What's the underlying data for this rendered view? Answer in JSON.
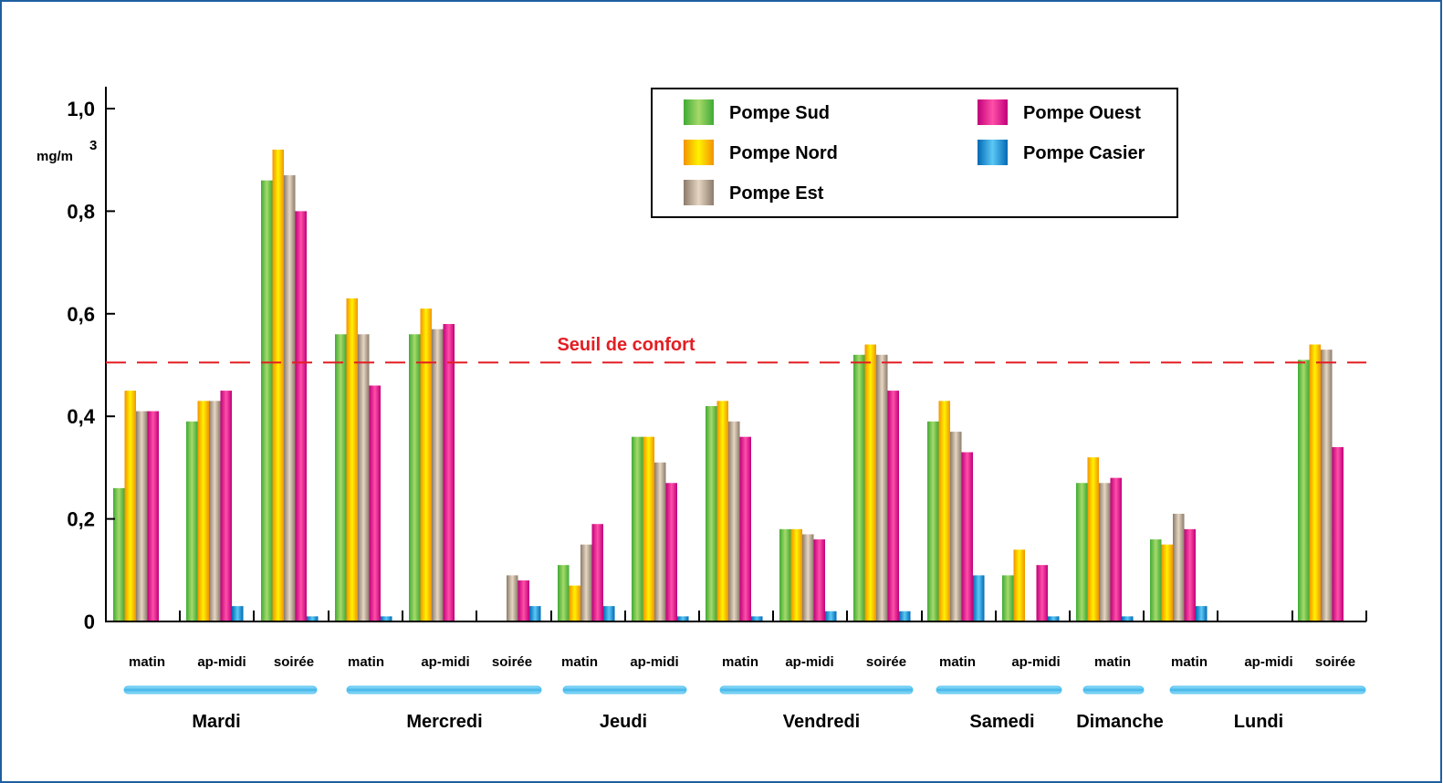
{
  "chart_data": {
    "type": "bar",
    "ylim": [
      0,
      1.0
    ],
    "yticks": [
      {
        "value": 0,
        "label": "0"
      },
      {
        "value": 0.2,
        "label": "0,2"
      },
      {
        "value": 0.4,
        "label": "0,4"
      },
      {
        "value": 0.6,
        "label": "0,6"
      },
      {
        "value": 0.8,
        "label": "0,8"
      },
      {
        "value": 1.0,
        "label": "1,0"
      }
    ],
    "y_unit": "mg/m",
    "y_unit_sup": "3",
    "grid": false,
    "legend_position": "top-center",
    "threshold": {
      "value": 0.505,
      "label": "Seuil de confort",
      "color": "#e31e24"
    },
    "series": [
      {
        "name": "Pompe Sud",
        "color": "#3faa35",
        "light": "#a6d96a"
      },
      {
        "name": "Pompe Nord",
        "color": "#f39200",
        "light": "#fff200"
      },
      {
        "name": "Pompe Est",
        "color": "#8c7b6b",
        "light": "#e5d6c2"
      },
      {
        "name": "Pompe Ouest",
        "color": "#c0007a",
        "light": "#ff4fa8"
      },
      {
        "name": "Pompe Casier",
        "color": "#0069b4",
        "light": "#5cc8f5"
      }
    ],
    "categories": [
      {
        "day": 0,
        "label": "matin",
        "values": [
          0.26,
          0.45,
          0.41,
          0.41,
          0
        ]
      },
      {
        "day": 0,
        "label": "ap-midi",
        "values": [
          0.39,
          0.43,
          0.43,
          0.45,
          0.03
        ]
      },
      {
        "day": 0,
        "label": "soirée",
        "values": [
          0.86,
          0.92,
          0.87,
          0.8,
          0.01
        ]
      },
      {
        "day": 1,
        "label": "matin",
        "values": [
          0.56,
          0.63,
          0.56,
          0.46,
          0.01
        ]
      },
      {
        "day": 1,
        "label": "ap-midi",
        "values": [
          0.56,
          0.61,
          0.57,
          0.58,
          0
        ]
      },
      {
        "day": 1,
        "label": "soirée",
        "values": [
          0,
          0,
          0.09,
          0.08,
          0.03
        ]
      },
      {
        "day": 2,
        "label": "matin",
        "values": [
          0.11,
          0.07,
          0.15,
          0.19,
          0.03
        ]
      },
      {
        "day": 2,
        "label": "ap-midi",
        "values": [
          0.36,
          0.36,
          0.31,
          0.27,
          0.01
        ]
      },
      {
        "day": 3,
        "label": "matin",
        "values": [
          0.42,
          0.43,
          0.39,
          0.36,
          0.01
        ]
      },
      {
        "day": 3,
        "label": "ap-midi",
        "values": [
          0.18,
          0.18,
          0.17,
          0.16,
          0.02
        ]
      },
      {
        "day": 3,
        "label": "soirée",
        "values": [
          0.52,
          0.54,
          0.52,
          0.45,
          0.02
        ]
      },
      {
        "day": 4,
        "label": "matin",
        "values": [
          0.39,
          0.43,
          0.37,
          0.33,
          0.09
        ]
      },
      {
        "day": 4,
        "label": "ap-midi",
        "values": [
          0.09,
          0.14,
          0,
          0.11,
          0.01
        ]
      },
      {
        "day": 5,
        "label": "matin",
        "values": [
          0.27,
          0.32,
          0.27,
          0.28,
          0.01
        ]
      },
      {
        "day": 6,
        "label": "matin",
        "values": [
          0.16,
          0.15,
          0.21,
          0.18,
          0.03
        ]
      },
      {
        "day": 6,
        "label": "ap-midi",
        "values": [
          0,
          0,
          0,
          0,
          0
        ]
      },
      {
        "day": 6,
        "label": "soirée",
        "values": [
          0.51,
          0.54,
          0.53,
          0.34,
          0
        ]
      }
    ],
    "days": [
      "Mardi",
      "Mercredi",
      "Jeudi",
      "Vendredi",
      "Samedi",
      "Dimanche",
      "Lundi"
    ]
  }
}
